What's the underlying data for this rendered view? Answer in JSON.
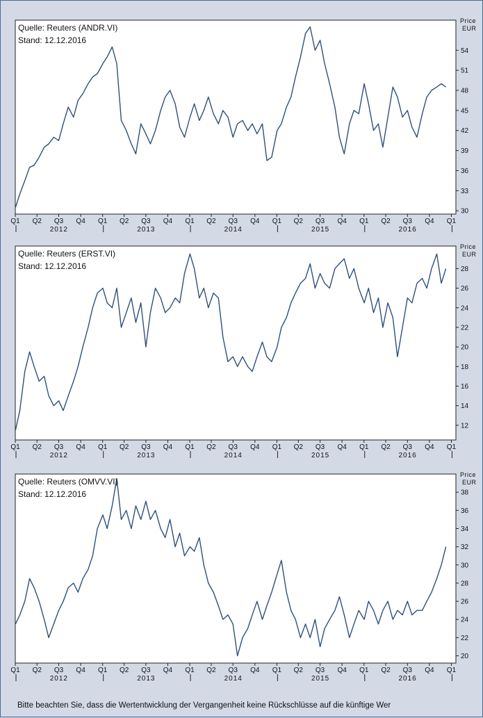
{
  "chart_data": [
    {
      "type": "line",
      "source_line": "Quelle: Reuters (ANDR.VI)",
      "date_line": "Stand: 12.12.2016",
      "unit_top": "Price",
      "unit_bottom": "EUR",
      "x_quarter_labels": [
        "Q1",
        "Q2",
        "Q3",
        "Q4",
        "Q1",
        "Q2",
        "Q3",
        "Q4",
        "Q1",
        "Q2",
        "Q3",
        "Q4",
        "Q1",
        "Q2",
        "Q3",
        "Q4",
        "Q1",
        "Q2",
        "Q3",
        "Q4",
        "Q1"
      ],
      "x_year_labels": [
        "2012",
        "2013",
        "2014",
        "2015",
        "2016"
      ],
      "yticks": [
        30,
        33,
        36,
        39,
        42,
        45,
        48,
        51,
        54
      ],
      "ylim": [
        29.5,
        58.5
      ],
      "xlim": [
        "2012-01-01",
        "2017-01-20"
      ],
      "series": [
        {
          "x": [
            "2012-01-02",
            "2012-01-20",
            "2012-02-10",
            "2012-03-01",
            "2012-03-20",
            "2012-04-10",
            "2012-05-01",
            "2012-05-20",
            "2012-06-10",
            "2012-07-01",
            "2012-07-20",
            "2012-08-10",
            "2012-09-01",
            "2012-09-20",
            "2012-10-10",
            "2012-11-01",
            "2012-11-20",
            "2012-12-10",
            "2013-01-02",
            "2013-01-20",
            "2013-02-10",
            "2013-03-01",
            "2013-03-20",
            "2013-04-10",
            "2013-05-01",
            "2013-05-20",
            "2013-06-10",
            "2013-07-01",
            "2013-07-20",
            "2013-08-10",
            "2013-09-01",
            "2013-09-20",
            "2013-10-10",
            "2013-11-01",
            "2013-11-20",
            "2013-12-10",
            "2014-01-02",
            "2014-01-20",
            "2014-02-10",
            "2014-03-01",
            "2014-03-20",
            "2014-04-10",
            "2014-05-01",
            "2014-05-20",
            "2014-06-10",
            "2014-07-01",
            "2014-07-20",
            "2014-08-10",
            "2014-09-01",
            "2014-09-20",
            "2014-10-10",
            "2014-11-01",
            "2014-11-20",
            "2014-12-10",
            "2015-01-02",
            "2015-01-20",
            "2015-02-10",
            "2015-03-01",
            "2015-03-20",
            "2015-04-10",
            "2015-05-01",
            "2015-05-20",
            "2015-06-10",
            "2015-07-01",
            "2015-07-20",
            "2015-08-10",
            "2015-09-01",
            "2015-09-20",
            "2015-10-10",
            "2015-11-01",
            "2015-11-20",
            "2015-12-10",
            "2016-01-02",
            "2016-01-20",
            "2016-02-10",
            "2016-03-01",
            "2016-03-20",
            "2016-04-10",
            "2016-05-01",
            "2016-05-20",
            "2016-06-10",
            "2016-07-01",
            "2016-07-20",
            "2016-08-10",
            "2016-09-01",
            "2016-09-20",
            "2016-10-10",
            "2016-11-01",
            "2016-11-20",
            "2016-12-09"
          ],
          "values": [
            30.5,
            32.5,
            34.5,
            36.5,
            36.8,
            38,
            39.5,
            40,
            41,
            40.5,
            43,
            45.5,
            44,
            46.5,
            47.5,
            49,
            50,
            50.5,
            52,
            53,
            54.5,
            52,
            43.5,
            42,
            40,
            38.5,
            43,
            41.5,
            40,
            42,
            45,
            47,
            48,
            46,
            42.5,
            41,
            44,
            46,
            43.5,
            45,
            47,
            44.5,
            43,
            45,
            44,
            41,
            43,
            43.5,
            42,
            43,
            41.5,
            43,
            37.5,
            38,
            42,
            43,
            45.5,
            47,
            50,
            53,
            56.5,
            57.5,
            54,
            55.5,
            52,
            49,
            45.5,
            41,
            38.5,
            43,
            45,
            44.5,
            49,
            46,
            42,
            43,
            39.5,
            44,
            48.5,
            47,
            44,
            45,
            42.5,
            41,
            44.5,
            47,
            48,
            48.5,
            49,
            48.5
          ]
        }
      ]
    },
    {
      "type": "line",
      "source_line": "Quelle: Reuters (ERST.VI)",
      "date_line": "Stand: 12.12.2016",
      "unit_top": "Price",
      "unit_bottom": "EUR",
      "x_quarter_labels": [
        "Q1",
        "Q2",
        "Q3",
        "Q4",
        "Q1",
        "Q2",
        "Q3",
        "Q4",
        "Q1",
        "Q2",
        "Q3",
        "Q4",
        "Q1",
        "Q2",
        "Q3",
        "Q4",
        "Q1",
        "Q2",
        "Q3",
        "Q4",
        "Q1"
      ],
      "x_year_labels": [
        "2012",
        "2013",
        "2014",
        "2015",
        "2016"
      ],
      "yticks": [
        12,
        14,
        16,
        18,
        20,
        22,
        24,
        26,
        28
      ],
      "ylim": [
        10.5,
        30.3
      ],
      "xlim": [
        "2012-01-01",
        "2017-01-20"
      ],
      "series": [
        {
          "x": [
            "2012-01-02",
            "2012-01-20",
            "2012-02-10",
            "2012-03-01",
            "2012-03-20",
            "2012-04-10",
            "2012-05-01",
            "2012-05-20",
            "2012-06-10",
            "2012-07-01",
            "2012-07-20",
            "2012-08-10",
            "2012-09-01",
            "2012-09-20",
            "2012-10-10",
            "2012-11-01",
            "2012-11-20",
            "2012-12-10",
            "2013-01-02",
            "2013-01-20",
            "2013-02-10",
            "2013-03-01",
            "2013-03-20",
            "2013-04-10",
            "2013-05-01",
            "2013-05-20",
            "2013-06-10",
            "2013-07-01",
            "2013-07-20",
            "2013-08-10",
            "2013-09-01",
            "2013-09-20",
            "2013-10-10",
            "2013-11-01",
            "2013-11-20",
            "2013-12-10",
            "2014-01-02",
            "2014-01-20",
            "2014-02-10",
            "2014-03-01",
            "2014-03-20",
            "2014-04-10",
            "2014-05-01",
            "2014-05-20",
            "2014-06-10",
            "2014-07-01",
            "2014-07-20",
            "2014-08-10",
            "2014-09-01",
            "2014-09-20",
            "2014-10-10",
            "2014-11-01",
            "2014-11-20",
            "2014-12-10",
            "2015-01-02",
            "2015-01-20",
            "2015-02-10",
            "2015-03-01",
            "2015-03-20",
            "2015-04-10",
            "2015-05-01",
            "2015-05-20",
            "2015-06-10",
            "2015-07-01",
            "2015-07-20",
            "2015-08-10",
            "2015-09-01",
            "2015-09-20",
            "2015-10-10",
            "2015-11-01",
            "2015-11-20",
            "2015-12-10",
            "2016-01-02",
            "2016-01-20",
            "2016-02-10",
            "2016-03-01",
            "2016-03-20",
            "2016-04-10",
            "2016-05-01",
            "2016-05-20",
            "2016-06-10",
            "2016-07-01",
            "2016-07-20",
            "2016-08-10",
            "2016-09-01",
            "2016-09-20",
            "2016-10-10",
            "2016-11-01",
            "2016-11-20",
            "2016-12-09"
          ],
          "values": [
            11.5,
            13.5,
            17.5,
            19.5,
            18,
            16.5,
            17,
            15,
            14,
            14.5,
            13.5,
            15,
            16.5,
            18,
            20,
            22,
            24,
            25.5,
            26,
            24.5,
            24,
            26,
            22,
            23.5,
            25,
            22.5,
            24.5,
            20,
            23.5,
            26,
            25,
            23.5,
            24,
            25,
            24.5,
            27.5,
            29.5,
            28,
            25,
            26,
            24,
            25.5,
            25,
            21,
            18.5,
            19,
            18,
            19,
            18,
            17.5,
            19,
            20.5,
            19,
            18.5,
            20,
            22,
            23,
            24.5,
            25.5,
            26.5,
            27,
            28.5,
            26,
            27.5,
            26.5,
            26,
            28,
            28.5,
            29,
            27,
            28,
            26,
            24.5,
            26,
            23.5,
            25,
            22,
            24.5,
            23,
            19,
            22,
            25,
            24.5,
            26.5,
            27,
            26,
            28,
            29.5,
            26.5,
            28
          ]
        }
      ]
    },
    {
      "type": "line",
      "source_line": "Quelle: Reuters (OMVV.VI)",
      "date_line": "Stand: 12.12.2016",
      "unit_top": "Price",
      "unit_bottom": "EUR",
      "x_quarter_labels": [
        "Q1",
        "Q2",
        "Q3",
        "Q4",
        "Q1",
        "Q2",
        "Q3",
        "Q4",
        "Q1",
        "Q2",
        "Q3",
        "Q4",
        "Q1",
        "Q2",
        "Q3",
        "Q4",
        "Q1",
        "Q2",
        "Q3",
        "Q4",
        "Q1"
      ],
      "x_year_labels": [
        "2012",
        "2013",
        "2014",
        "2015",
        "2016"
      ],
      "yticks": [
        20,
        22,
        24,
        26,
        28,
        30,
        32,
        34,
        36,
        38
      ],
      "ylim": [
        19.2,
        40
      ],
      "xlim": [
        "2012-01-01",
        "2017-01-20"
      ],
      "series": [
        {
          "x": [
            "2012-01-02",
            "2012-01-20",
            "2012-02-10",
            "2012-03-01",
            "2012-03-20",
            "2012-04-10",
            "2012-05-01",
            "2012-05-20",
            "2012-06-10",
            "2012-07-01",
            "2012-07-20",
            "2012-08-10",
            "2012-09-01",
            "2012-09-20",
            "2012-10-10",
            "2012-11-01",
            "2012-11-20",
            "2012-12-10",
            "2013-01-02",
            "2013-01-20",
            "2013-02-10",
            "2013-03-01",
            "2013-03-20",
            "2013-04-10",
            "2013-05-01",
            "2013-05-20",
            "2013-06-10",
            "2013-07-01",
            "2013-07-20",
            "2013-08-10",
            "2013-09-01",
            "2013-09-20",
            "2013-10-10",
            "2013-11-01",
            "2013-11-20",
            "2013-12-10",
            "2014-01-02",
            "2014-01-20",
            "2014-02-10",
            "2014-03-01",
            "2014-03-20",
            "2014-04-10",
            "2014-05-01",
            "2014-05-20",
            "2014-06-10",
            "2014-07-01",
            "2014-07-20",
            "2014-08-10",
            "2014-09-01",
            "2014-09-20",
            "2014-10-10",
            "2014-11-01",
            "2014-11-20",
            "2014-12-10",
            "2015-01-02",
            "2015-01-20",
            "2015-02-10",
            "2015-03-01",
            "2015-03-20",
            "2015-04-10",
            "2015-05-01",
            "2015-05-20",
            "2015-06-10",
            "2015-07-01",
            "2015-07-20",
            "2015-08-10",
            "2015-09-01",
            "2015-09-20",
            "2015-10-10",
            "2015-11-01",
            "2015-11-20",
            "2015-12-10",
            "2016-01-02",
            "2016-01-20",
            "2016-02-10",
            "2016-03-01",
            "2016-03-20",
            "2016-04-10",
            "2016-05-01",
            "2016-05-20",
            "2016-06-10",
            "2016-07-01",
            "2016-07-20",
            "2016-08-10",
            "2016-09-01",
            "2016-09-20",
            "2016-10-10",
            "2016-11-01",
            "2016-11-20",
            "2016-12-09"
          ],
          "values": [
            23.5,
            24.5,
            26,
            28.5,
            27.5,
            26,
            24,
            22,
            23.5,
            25,
            26,
            27.5,
            28,
            27,
            28.5,
            29.5,
            31,
            34,
            35.5,
            34,
            36.5,
            39.5,
            35,
            36,
            34,
            36.5,
            35,
            37,
            35,
            36,
            34,
            33,
            35,
            32,
            33.5,
            31,
            32,
            31.5,
            33,
            30,
            28,
            27,
            25.5,
            24,
            24.5,
            23.5,
            20,
            22,
            23,
            24.5,
            26,
            24,
            25.5,
            27,
            29,
            30.5,
            27,
            25,
            24,
            22,
            23.5,
            22,
            24,
            21,
            23,
            24,
            25,
            26.5,
            24.5,
            22,
            23.5,
            25,
            24,
            26,
            25,
            23.5,
            25,
            26,
            24,
            25,
            24.5,
            26,
            24.5,
            25,
            25,
            26,
            27,
            28.5,
            30,
            32
          ]
        }
      ]
    }
  ],
  "footer": {
    "disclaimer": "Bitte beachten Sie, dass die Wertentwicklung der Vergangenheit keine Rückschlüsse auf die künftige Wer"
  }
}
